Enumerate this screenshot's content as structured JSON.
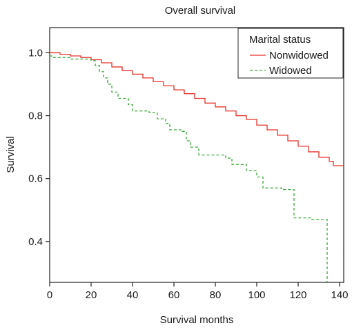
{
  "chart_data": {
    "type": "line",
    "title": "Overall survival",
    "xlabel": "Survival months",
    "ylabel": "Survival",
    "xlim": [
      0,
      142
    ],
    "ylim": [
      0.27,
      1.08
    ],
    "x_ticks": [
      0,
      20,
      40,
      60,
      80,
      100,
      120,
      140
    ],
    "y_ticks": [
      0.4,
      0.6,
      0.8,
      1.0
    ],
    "x_tick_labels": [
      "0",
      "20",
      "40",
      "60",
      "80",
      "100",
      "120",
      "140"
    ],
    "y_tick_labels": [
      "0.4",
      "0.6",
      "0.8",
      "1.0"
    ],
    "grid": false,
    "legend": {
      "title": "Marital status",
      "placement": "top-right"
    },
    "series": [
      {
        "name": "Nonwidowed",
        "color": "#e8322a",
        "style": "solid",
        "step": true,
        "points": [
          [
            0,
            1.0
          ],
          [
            5,
            0.995
          ],
          [
            10,
            0.99
          ],
          [
            15,
            0.985
          ],
          [
            20,
            0.978
          ],
          [
            25,
            0.968
          ],
          [
            30,
            0.955
          ],
          [
            35,
            0.943
          ],
          [
            40,
            0.932
          ],
          [
            45,
            0.92
          ],
          [
            50,
            0.908
          ],
          [
            55,
            0.895
          ],
          [
            60,
            0.882
          ],
          [
            65,
            0.87
          ],
          [
            70,
            0.855
          ],
          [
            75,
            0.84
          ],
          [
            80,
            0.828
          ],
          [
            85,
            0.815
          ],
          [
            90,
            0.8
          ],
          [
            95,
            0.788
          ],
          [
            100,
            0.77
          ],
          [
            105,
            0.755
          ],
          [
            110,
            0.738
          ],
          [
            115,
            0.72
          ],
          [
            120,
            0.703
          ],
          [
            125,
            0.685
          ],
          [
            130,
            0.668
          ],
          [
            135,
            0.655
          ],
          [
            137,
            0.641
          ],
          [
            142,
            0.641
          ]
        ]
      },
      {
        "name": "Widowed",
        "color": "#3aa83a",
        "style": "dashed",
        "step": true,
        "points": [
          [
            0,
            0.99
          ],
          [
            1,
            0.985
          ],
          [
            10,
            0.98
          ],
          [
            20,
            0.975
          ],
          [
            22,
            0.96
          ],
          [
            24,
            0.94
          ],
          [
            26,
            0.92
          ],
          [
            28,
            0.9
          ],
          [
            30,
            0.875
          ],
          [
            33,
            0.855
          ],
          [
            38,
            0.835
          ],
          [
            40,
            0.815
          ],
          [
            48,
            0.81
          ],
          [
            52,
            0.79
          ],
          [
            56,
            0.775
          ],
          [
            58,
            0.755
          ],
          [
            64,
            0.75
          ],
          [
            66,
            0.72
          ],
          [
            68,
            0.7
          ],
          [
            72,
            0.675
          ],
          [
            85,
            0.665
          ],
          [
            88,
            0.645
          ],
          [
            95,
            0.625
          ],
          [
            100,
            0.605
          ],
          [
            103,
            0.57
          ],
          [
            112,
            0.565
          ],
          [
            118,
            0.475
          ],
          [
            126,
            0.47
          ],
          [
            133,
            0.47
          ],
          [
            134,
            0.27
          ]
        ]
      }
    ]
  }
}
